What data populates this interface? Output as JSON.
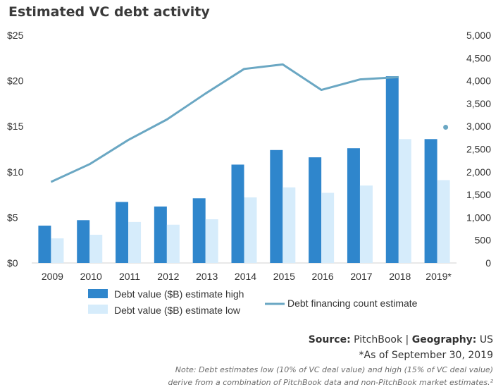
{
  "chart_data": {
    "type": "bar",
    "title": "Estimated VC debt activity",
    "categories": [
      "2009",
      "2010",
      "2011",
      "2012",
      "2013",
      "2014",
      "2015",
      "2016",
      "2017",
      "2018",
      "2019*"
    ],
    "series": [
      {
        "name": "Debt value ($B) estimate high",
        "kind": "bar",
        "axis": "left",
        "color": "#2f86cc",
        "values": [
          4.1,
          4.7,
          6.7,
          6.2,
          7.1,
          10.8,
          12.4,
          11.6,
          12.6,
          20.5,
          13.6
        ]
      },
      {
        "name": "Debt value ($B) estimate low",
        "kind": "bar",
        "axis": "left",
        "color": "#d6ecfb",
        "values": [
          2.7,
          3.1,
          4.5,
          4.2,
          4.8,
          7.2,
          8.3,
          7.7,
          8.5,
          13.6,
          9.1
        ]
      },
      {
        "name": "Debt financing count estimate",
        "kind": "line",
        "axis": "right",
        "color": "#6aa7c3",
        "values": [
          1780,
          2170,
          2700,
          3150,
          3720,
          4260,
          4360,
          3800,
          4030,
          4080,
          2980
        ],
        "last_as_marker": true
      }
    ],
    "y_left": {
      "min": 0,
      "max": 25,
      "ticks": [
        0,
        5,
        10,
        15,
        20,
        25
      ],
      "tick_labels": [
        "$0",
        "$5",
        "$10",
        "$15",
        "$20",
        "$25"
      ]
    },
    "y_right": {
      "min": 0,
      "max": 5000,
      "ticks": [
        0,
        500,
        1000,
        1500,
        2000,
        2500,
        3000,
        3500,
        4000,
        4500,
        5000
      ],
      "tick_labels": [
        "0",
        "500",
        "1,000",
        "1,500",
        "2,000",
        "2,500",
        "3,000",
        "3,500",
        "4,000",
        "4,500",
        "5,000"
      ]
    },
    "grid": false,
    "legend_placement": "bottom"
  },
  "footer": {
    "source_label": "Source",
    "source_value": "PitchBook",
    "geography_label": "Geography",
    "geography_value": "US",
    "as_of": "*As of September 30, 2019",
    "note_line1": "Note: Debt estimates low (10% of VC deal value) and high (15% of VC deal value)",
    "note_line2": "derive from a combination of PitchBook data and non-PitchBook market estimates.²"
  }
}
